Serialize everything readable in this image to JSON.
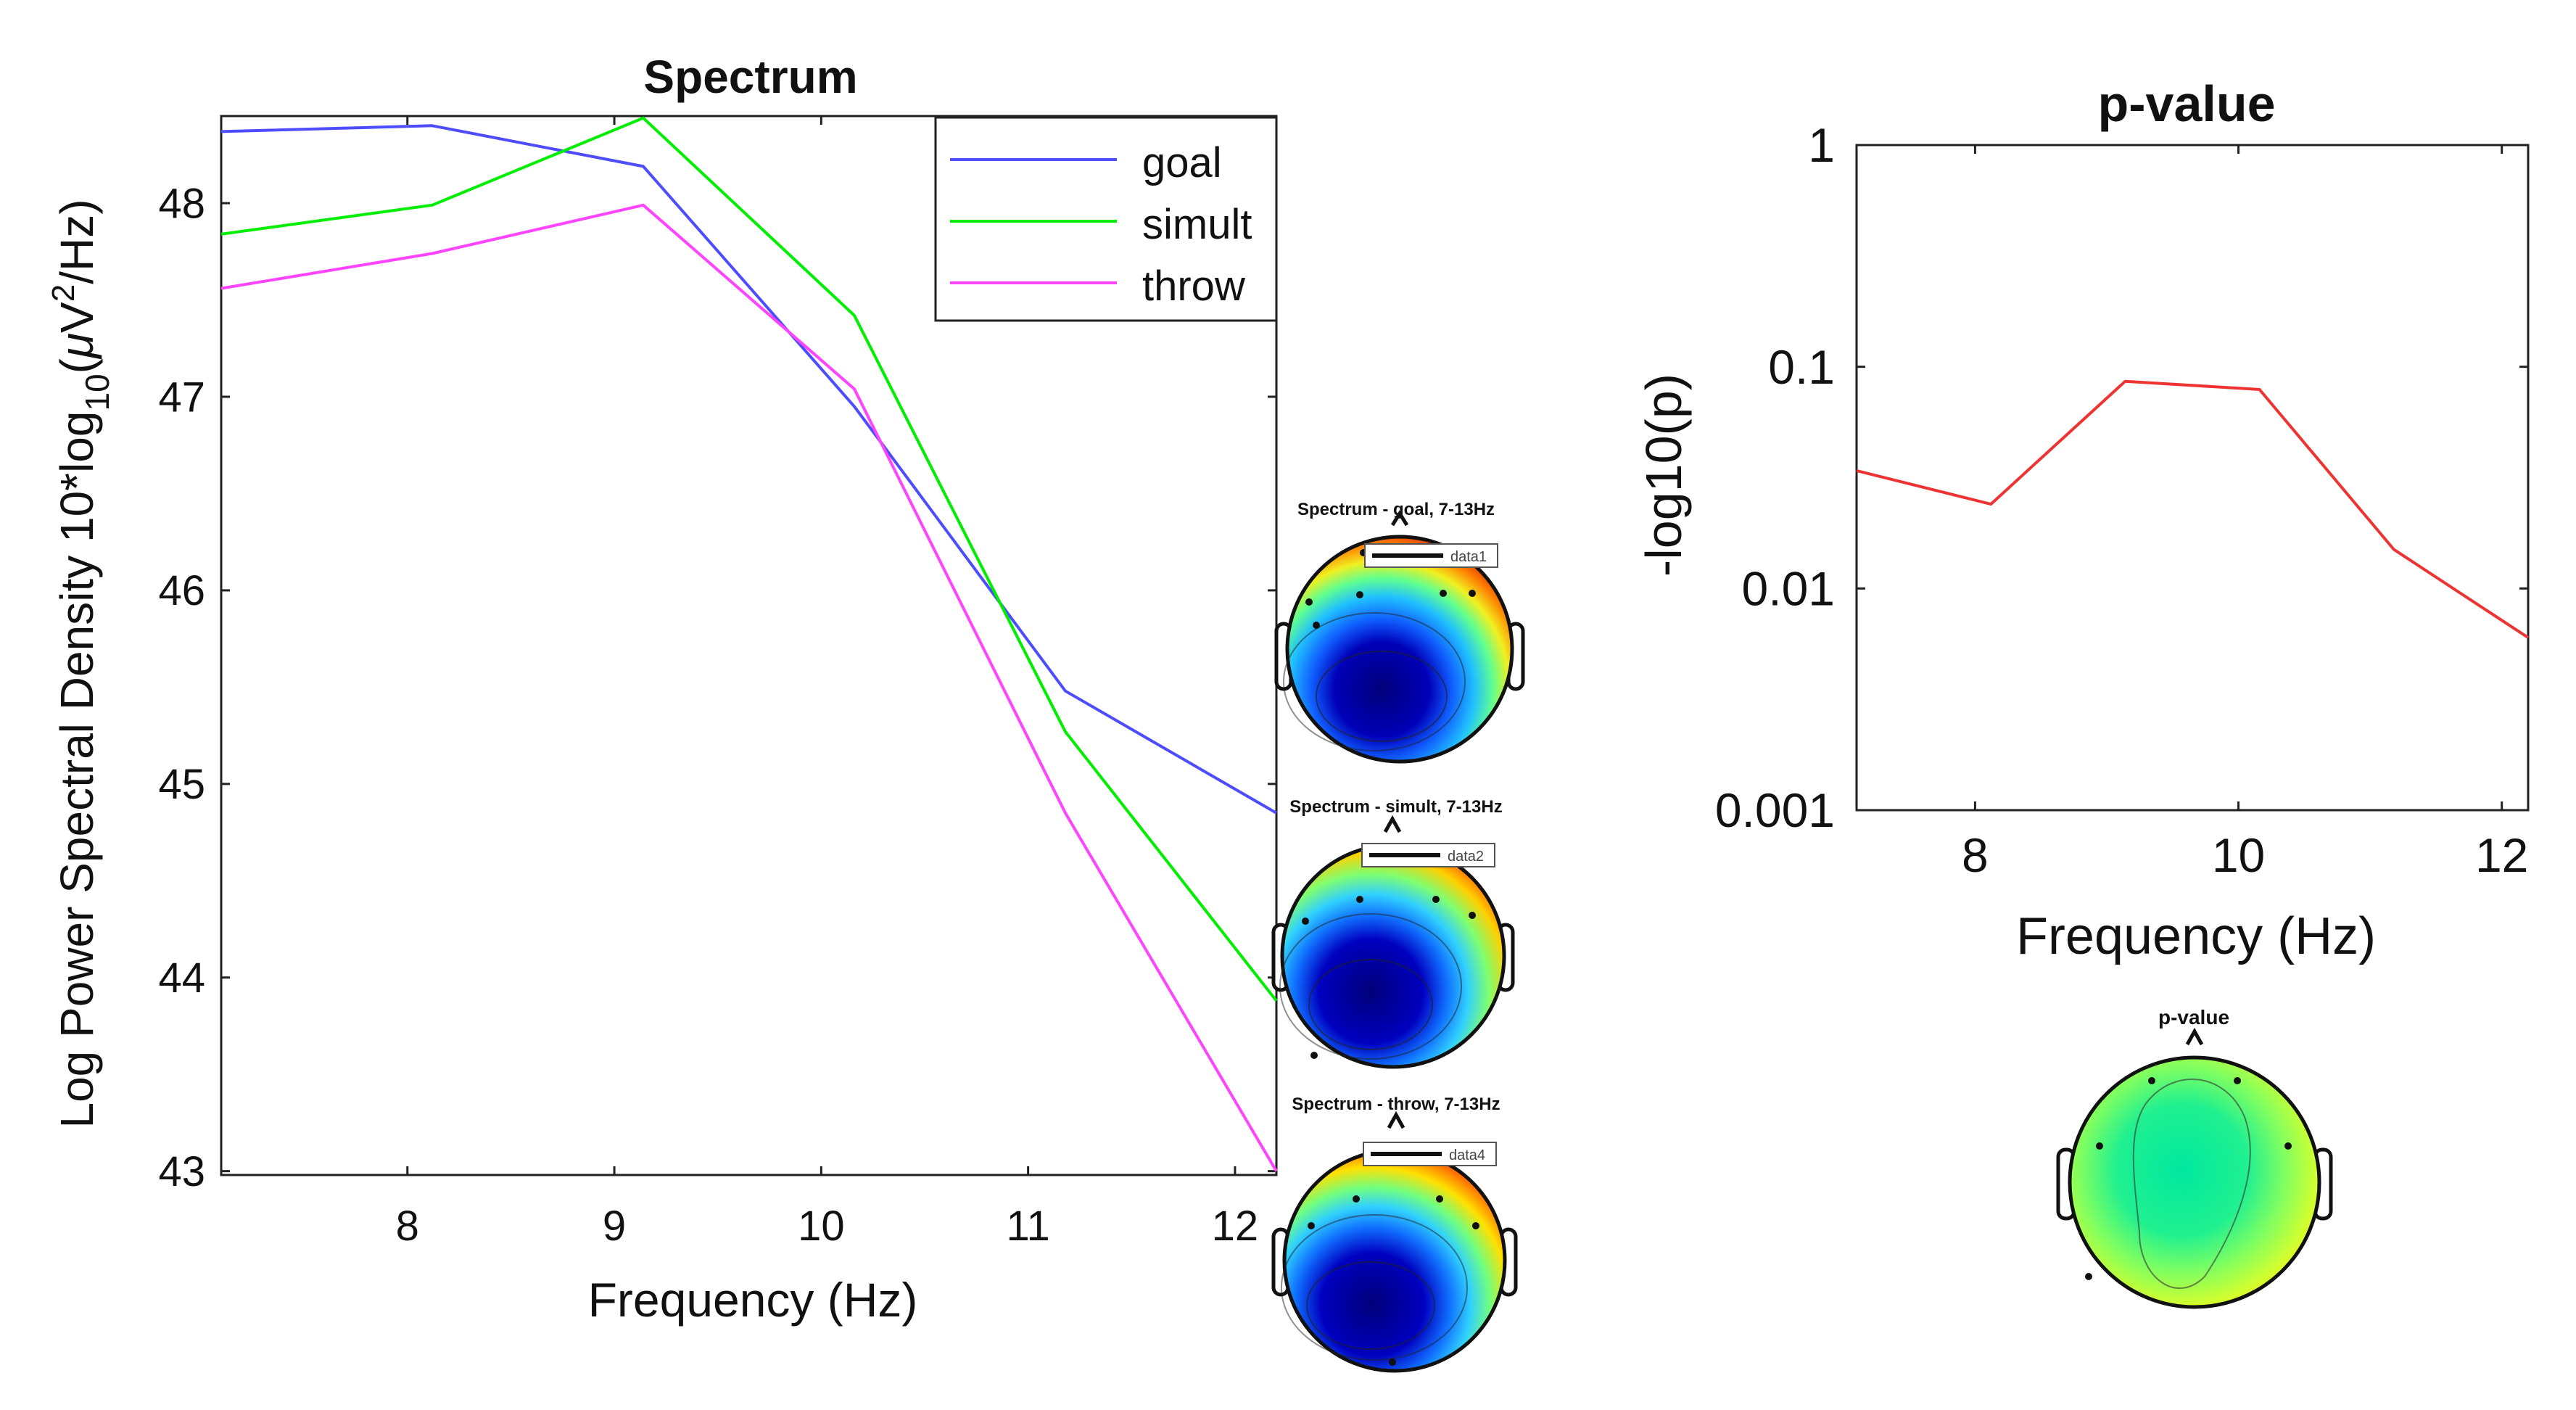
{
  "chart_data": [
    {
      "type": "line",
      "title": "Spectrum",
      "xlabel": "Frequency (Hz)",
      "ylabel_main": "Log Power Spectral Density 10*log",
      "ylabel_sub": "10",
      "ylabel_unit_prefix": "(",
      "ylabel_unit_mu": "μ",
      "ylabel_unit_v": "V",
      "ylabel_unit_sup": "2",
      "ylabel_unit_suffix": "/Hz)",
      "xlim": [
        7.1,
        12.2
      ],
      "ylim": [
        42.98,
        48.45
      ],
      "xticks": [
        8,
        9,
        10,
        11,
        12
      ],
      "xtick_labels": [
        "8",
        "9",
        "10",
        "11",
        "12"
      ],
      "yticks": [
        43,
        44,
        45,
        46,
        47,
        48
      ],
      "ytick_labels": [
        "43",
        "44",
        "45",
        "46",
        "47",
        "48"
      ],
      "legend_position": "top-right",
      "series": [
        {
          "name": "goal",
          "color": "#4d4dff",
          "x": [
            7.1,
            8.12,
            9.14,
            10.16,
            11.18,
            12.2
          ],
          "y": [
            48.37,
            48.4,
            48.19,
            46.95,
            45.48,
            44.85
          ]
        },
        {
          "name": "simult",
          "color": "#00ee00",
          "x": [
            7.1,
            8.12,
            9.14,
            10.16,
            11.18,
            12.2
          ],
          "y": [
            47.84,
            47.99,
            48.44,
            47.42,
            45.27,
            43.88
          ]
        },
        {
          "name": "throw",
          "color": "#ff44ff",
          "x": [
            7.1,
            8.12,
            9.14,
            10.16,
            11.18,
            12.2
          ],
          "y": [
            47.56,
            47.74,
            47.99,
            47.04,
            44.85,
            43.0
          ]
        }
      ]
    },
    {
      "type": "line",
      "title": "p-value",
      "xlabel": "Frequency (Hz)",
      "ylabel": "-log10(p)",
      "yscale": "log",
      "xlim": [
        7.1,
        12.2
      ],
      "ylim": [
        0.001,
        1
      ],
      "xticks": [
        8,
        10,
        12
      ],
      "xtick_labels": [
        "8",
        "10",
        "12"
      ],
      "yticks": [
        0.001,
        0.01,
        0.1,
        1
      ],
      "ytick_labels": [
        "0.001",
        "0.01",
        "0.1",
        "1"
      ],
      "series": [
        {
          "name": "p-value",
          "color": "#ee3333",
          "x": [
            7.1,
            8.12,
            9.14,
            10.16,
            11.18,
            12.2
          ],
          "y": [
            0.034,
            0.024,
            0.086,
            0.079,
            0.015,
            0.006
          ]
        }
      ]
    }
  ],
  "topoplots": [
    {
      "title": "Spectrum - goal, 7-13Hz",
      "legend": "data1"
    },
    {
      "title": "Spectrum - simult, 7-13Hz",
      "legend": "data2"
    },
    {
      "title": "Spectrum - throw, 7-13Hz",
      "legend": "data4"
    },
    {
      "title": "p-value"
    }
  ]
}
